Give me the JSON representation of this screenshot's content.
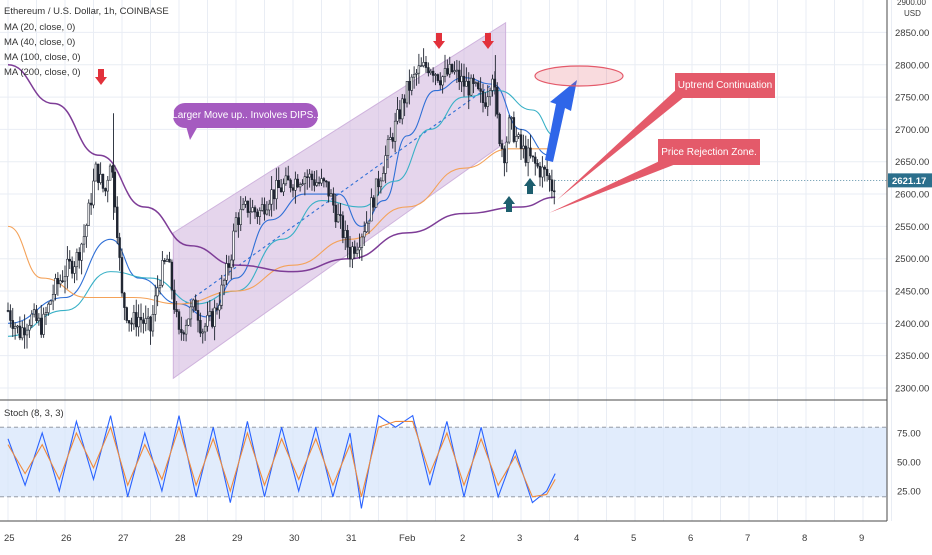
{
  "symbol_title": "Ethereum / U.S. Dollar, 1h, COINBASE",
  "indicators": [
    "MA (20, close, 0)",
    "MA (40, close, 0)",
    "MA (100, close, 0)",
    "MA (200, close, 0)"
  ],
  "osc_label": "Stoch (8, 3, 3)",
  "currency": "USD",
  "top_price_partial": "2900.00",
  "last_price": "2621.17",
  "colors": {
    "background": "#ffffff",
    "grid": "#e9edf4",
    "candle": "#1e2430",
    "ma20": "#2f6fd6",
    "ma40": "#38b0c6",
    "ma100": "#f4a259",
    "ma200": "#7e3d97",
    "channel": "#cfb3dd",
    "stoch_band": "#d7e5fb",
    "stoch_k": "#2962ff",
    "stoch_d": "#ef8a3c",
    "red_arrow": "#e2313b",
    "green_arrow": "#1d5e6e",
    "blue_arrow": "#2f66e9",
    "callout": "#e45a6a",
    "bubble": "#a55bc0",
    "price_tag": "#2b6f8c"
  },
  "annotations": {
    "bubble": "Larger Move up.. Involves DIPS..",
    "uptrend": "Uptrend Continuation",
    "rejection": "Price Rejection Zone."
  },
  "chart_data": [
    {
      "type": "candlestick",
      "title": "Ethereum / U.S. Dollar, 1h, COINBASE",
      "ylabel": "USD",
      "ylim": [
        2280,
        2900
      ],
      "grid": true,
      "x_ticks": [
        "25",
        "26",
        "27",
        "28",
        "29",
        "30",
        "31",
        "Feb",
        "2",
        "3",
        "4",
        "5",
        "6",
        "7",
        "8",
        "9"
      ],
      "y_ticks": [
        2300,
        2350,
        2400,
        2450,
        2500,
        2550,
        2600,
        2650,
        2700,
        2750,
        2800,
        2850
      ],
      "y_tick_labels": [
        "2300.00",
        "2350.00",
        "2400.00",
        "2450.00",
        "2500.00",
        "2550.00",
        "2600.00",
        "2650.00",
        "2700.00",
        "2750.00",
        "2800.00",
        "2850.00"
      ],
      "last_price": 2621.17,
      "price_path": [
        [
          25.0,
          2420
        ],
        [
          25.2,
          2385
        ],
        [
          25.4,
          2410
        ],
        [
          25.6,
          2395
        ],
        [
          25.8,
          2450
        ],
        [
          26.0,
          2480
        ],
        [
          26.2,
          2500
        ],
        [
          26.35,
          2540
        ],
        [
          26.55,
          2640
        ],
        [
          26.7,
          2600
        ],
        [
          26.8,
          2660
        ],
        [
          26.9,
          2570
        ],
        [
          27.0,
          2440
        ],
        [
          27.15,
          2400
        ],
        [
          27.3,
          2410
        ],
        [
          27.5,
          2390
        ],
        [
          27.65,
          2470
        ],
        [
          27.8,
          2500
        ],
        [
          27.9,
          2440
        ],
        [
          28.0,
          2380
        ],
        [
          28.15,
          2410
        ],
        [
          28.3,
          2430
        ],
        [
          28.4,
          2390
        ],
        [
          28.6,
          2410
        ],
        [
          28.75,
          2450
        ],
        [
          28.9,
          2500
        ],
        [
          29.0,
          2560
        ],
        [
          29.2,
          2580
        ],
        [
          29.4,
          2570
        ],
        [
          29.6,
          2600
        ],
        [
          29.8,
          2610
        ],
        [
          30.0,
          2620
        ],
        [
          30.2,
          2630
        ],
        [
          30.4,
          2620
        ],
        [
          30.6,
          2610
        ],
        [
          30.8,
          2560
        ],
        [
          31.0,
          2510
        ],
        [
          31.15,
          2530
        ],
        [
          31.3,
          2560
        ],
        [
          31.5,
          2620
        ],
        [
          31.7,
          2680
        ],
        [
          31.85,
          2720
        ],
        [
          32.0,
          2760
        ],
        [
          32.2,
          2790
        ],
        [
          32.4,
          2800
        ],
        [
          32.6,
          2780
        ],
        [
          32.8,
          2790
        ],
        [
          33.0,
          2770
        ],
        [
          33.2,
          2760
        ],
        [
          33.35,
          2740
        ],
        [
          33.5,
          2790
        ],
        [
          33.6,
          2700
        ],
        [
          33.7,
          2660
        ],
        [
          33.8,
          2710
        ],
        [
          33.9,
          2690
        ],
        [
          34.0,
          2670
        ],
        [
          34.1,
          2660
        ],
        [
          34.2,
          2650
        ],
        [
          34.3,
          2640
        ],
        [
          34.45,
          2630
        ],
        [
          34.55,
          2610
        ],
        [
          34.6,
          2621
        ]
      ],
      "ma_series": [
        {
          "name": "MA (20, close, 0)",
          "points": [
            [
              25.0,
              2400
            ],
            [
              26.0,
              2440
            ],
            [
              26.8,
              2530
            ],
            [
              27.3,
              2470
            ],
            [
              28.0,
              2430
            ],
            [
              28.5,
              2410
            ],
            [
              29.0,
              2470
            ],
            [
              29.6,
              2560
            ],
            [
              30.2,
              2600
            ],
            [
              30.8,
              2600
            ],
            [
              31.2,
              2550
            ],
            [
              31.6,
              2590
            ],
            [
              32.0,
              2690
            ],
            [
              32.5,
              2760
            ],
            [
              33.0,
              2780
            ],
            [
              33.5,
              2770
            ],
            [
              34.0,
              2700
            ],
            [
              34.5,
              2660
            ]
          ]
        },
        {
          "name": "MA (40, close, 0)",
          "points": [
            [
              25.0,
              2380
            ],
            [
              26.0,
              2420
            ],
            [
              26.8,
              2480
            ],
            [
              27.5,
              2470
            ],
            [
              28.3,
              2430
            ],
            [
              29.0,
              2450
            ],
            [
              29.8,
              2530
            ],
            [
              30.5,
              2590
            ],
            [
              31.2,
              2580
            ],
            [
              31.8,
              2620
            ],
            [
              32.4,
              2700
            ],
            [
              33.0,
              2750
            ],
            [
              33.6,
              2760
            ],
            [
              34.2,
              2730
            ],
            [
              34.6,
              2690
            ]
          ]
        },
        {
          "name": "MA (100, close, 0)",
          "points": [
            [
              25.0,
              2550
            ],
            [
              25.6,
              2470
            ],
            [
              26.4,
              2440
            ],
            [
              27.2,
              2440
            ],
            [
              28.0,
              2430
            ],
            [
              29.0,
              2450
            ],
            [
              30.0,
              2490
            ],
            [
              31.0,
              2530
            ],
            [
              32.0,
              2580
            ],
            [
              33.0,
              2640
            ],
            [
              33.8,
              2670
            ],
            [
              34.6,
              2670
            ]
          ]
        },
        {
          "name": "MA (200, close, 0)",
          "points": [
            [
              25.0,
              2800
            ],
            [
              25.8,
              2740
            ],
            [
              26.6,
              2660
            ],
            [
              27.4,
              2580
            ],
            [
              28.2,
              2520
            ],
            [
              29.0,
              2490
            ],
            [
              30.0,
              2480
            ],
            [
              31.0,
              2500
            ],
            [
              32.0,
              2540
            ],
            [
              33.0,
              2570
            ],
            [
              34.0,
              2580
            ],
            [
              34.6,
              2595
            ]
          ]
        }
      ]
    },
    {
      "type": "line",
      "title": "Stoch (8, 3, 3)",
      "ylim": [
        0,
        100
      ],
      "y_ticks": [
        25,
        50,
        75
      ],
      "y_tick_labels": [
        "25.00",
        "50.00",
        "75.00"
      ],
      "band": [
        20,
        80
      ],
      "series": [
        {
          "name": "%K",
          "values": [
            [
              25.0,
              70
            ],
            [
              25.3,
              30
            ],
            [
              25.6,
              75
            ],
            [
              25.9,
              25
            ],
            [
              26.2,
              85
            ],
            [
              26.5,
              35
            ],
            [
              26.8,
              90
            ],
            [
              27.1,
              20
            ],
            [
              27.4,
              75
            ],
            [
              27.7,
              25
            ],
            [
              28.0,
              90
            ],
            [
              28.3,
              20
            ],
            [
              28.6,
              80
            ],
            [
              28.9,
              15
            ],
            [
              29.2,
              85
            ],
            [
              29.5,
              20
            ],
            [
              29.8,
              80
            ],
            [
              30.1,
              25
            ],
            [
              30.4,
              80
            ],
            [
              30.7,
              20
            ],
            [
              31.0,
              75
            ],
            [
              31.2,
              10
            ],
            [
              31.5,
              90
            ],
            [
              31.8,
              80
            ],
            [
              32.1,
              90
            ],
            [
              32.4,
              30
            ],
            [
              32.7,
              85
            ],
            [
              33.0,
              20
            ],
            [
              33.3,
              80
            ],
            [
              33.6,
              20
            ],
            [
              33.9,
              60
            ],
            [
              34.2,
              15
            ],
            [
              34.45,
              25
            ],
            [
              34.6,
              40
            ]
          ]
        },
        {
          "name": "%D",
          "values": [
            [
              25.0,
              65
            ],
            [
              25.3,
              40
            ],
            [
              25.6,
              65
            ],
            [
              25.9,
              35
            ],
            [
              26.2,
              75
            ],
            [
              26.5,
              45
            ],
            [
              26.8,
              80
            ],
            [
              27.1,
              30
            ],
            [
              27.4,
              65
            ],
            [
              27.7,
              35
            ],
            [
              28.0,
              80
            ],
            [
              28.3,
              30
            ],
            [
              28.6,
              70
            ],
            [
              28.9,
              25
            ],
            [
              29.2,
              75
            ],
            [
              29.5,
              30
            ],
            [
              29.8,
              70
            ],
            [
              30.1,
              35
            ],
            [
              30.4,
              70
            ],
            [
              30.7,
              30
            ],
            [
              31.0,
              65
            ],
            [
              31.2,
              20
            ],
            [
              31.5,
              80
            ],
            [
              31.8,
              85
            ],
            [
              32.1,
              85
            ],
            [
              32.4,
              40
            ],
            [
              32.7,
              75
            ],
            [
              33.0,
              30
            ],
            [
              33.3,
              70
            ],
            [
              33.6,
              30
            ],
            [
              33.9,
              55
            ],
            [
              34.2,
              20
            ],
            [
              34.45,
              22
            ],
            [
              34.6,
              35
            ]
          ]
        }
      ]
    }
  ]
}
